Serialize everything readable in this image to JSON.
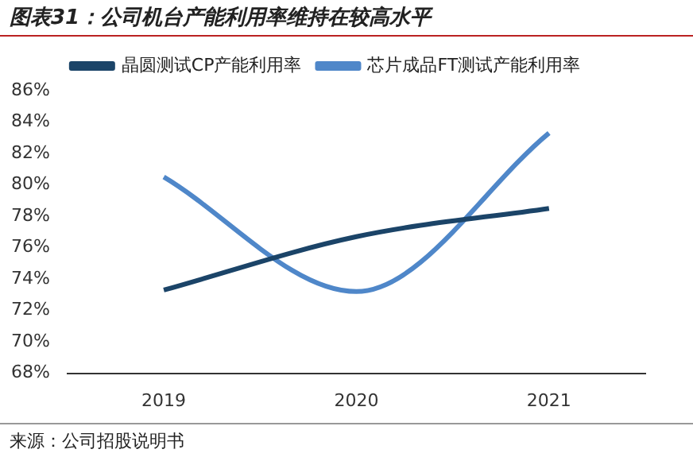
{
  "chart_data": {
    "type": "line",
    "title": "图表31：公司机台产能利用率维持在较高水平",
    "categories": [
      "2019",
      "2020",
      "2021"
    ],
    "series": [
      {
        "name": "晶圆测试CP产能利用率",
        "color": "#1b4468",
        "values": [
          73.3,
          76.7,
          78.5
        ]
      },
      {
        "name": "芯片成品FT测试产能利用率",
        "color": "#4f87c9",
        "values": [
          80.5,
          73.2,
          83.3
        ]
      }
    ],
    "ylim": [
      68,
      86
    ],
    "yticks": [
      {
        "value": 68,
        "label": "68%"
      },
      {
        "value": 70,
        "label": "70%"
      },
      {
        "value": 72,
        "label": "72%"
      },
      {
        "value": 74,
        "label": "74%"
      },
      {
        "value": 76,
        "label": "76%"
      },
      {
        "value": 78,
        "label": "78%"
      },
      {
        "value": 80,
        "label": "80%"
      },
      {
        "value": 82,
        "label": "82%"
      },
      {
        "value": 84,
        "label": "84%"
      },
      {
        "value": 86,
        "label": "86%"
      }
    ],
    "grid": false,
    "legend": "top",
    "marker": "none",
    "line_style": "solid",
    "annotations": [
      "来源：公司招股说明书"
    ]
  }
}
